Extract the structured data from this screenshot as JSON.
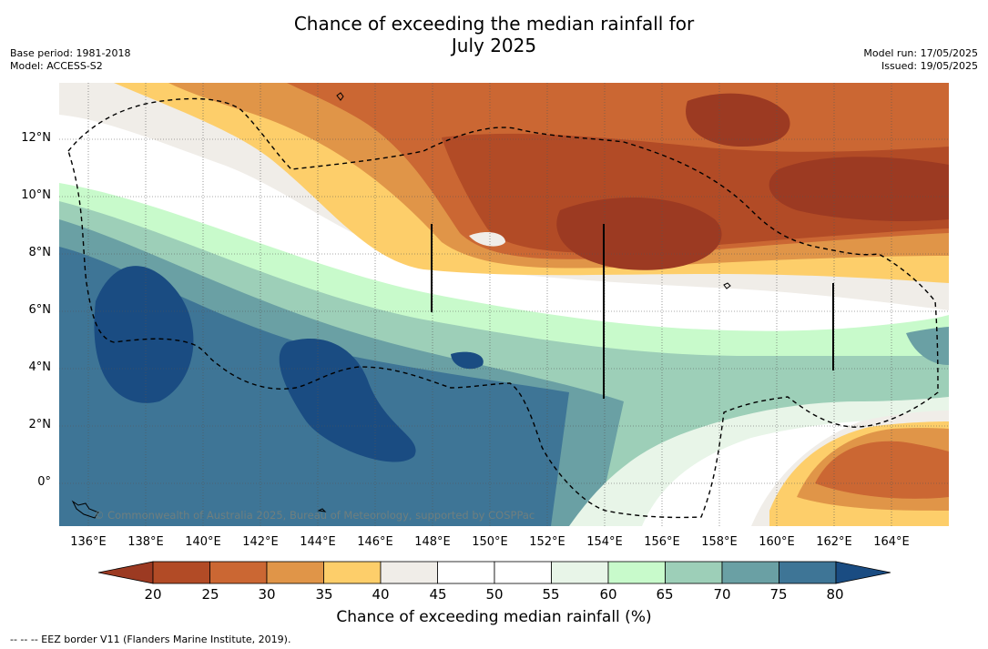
{
  "title_line1": "Chance of exceeding the median rainfall for",
  "title_line2": "July 2025",
  "meta_left": {
    "base_period": "Base period: 1981-2018",
    "model": "Model: ACCESS-S2"
  },
  "meta_right": {
    "model_run": "Model run: 17/05/2025",
    "issued": "Issued: 19/05/2025"
  },
  "map": {
    "extent": {
      "lon_min": 135,
      "lon_max": 166,
      "lat_min": -1.5,
      "lat_max": 14
    },
    "lon_ticks": [
      "136°E",
      "138°E",
      "140°E",
      "142°E",
      "144°E",
      "146°E",
      "148°E",
      "150°E",
      "152°E",
      "154°E",
      "156°E",
      "158°E",
      "160°E",
      "162°E",
      "164°E"
    ],
    "lat_ticks": [
      "12°N",
      "10°N",
      "8°N",
      "6°N",
      "4°N",
      "2°N",
      "0°"
    ],
    "copyright": "© Commonwealth of Australia 2025, Bureau of Meteorology, supported by COSPPac"
  },
  "colorbar": {
    "labels": [
      "20",
      "25",
      "30",
      "35",
      "40",
      "45",
      "50",
      "55",
      "60",
      "65",
      "70",
      "75",
      "80"
    ],
    "colors": [
      "#9c3a22",
      "#b24b26",
      "#cb6733",
      "#e09548",
      "#fdce6a",
      "#f0ede8",
      "#ffffff",
      "#ffffff",
      "#e8f5e8",
      "#c8facb",
      "#9dcfb8",
      "#6aa0a4",
      "#3e7596",
      "#1a4c82"
    ],
    "title": "Chance of exceeding median rainfall (%)"
  },
  "footnote": "--  --  -- EEZ border V11 (Flanders Marine Institute, 2019)."
}
